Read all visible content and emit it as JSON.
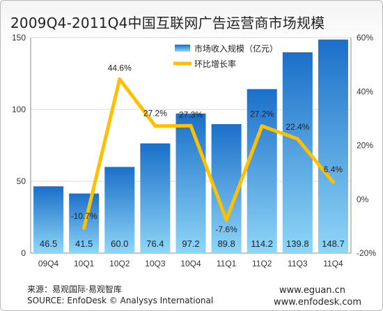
{
  "title": "2009Q4-2011Q4中国互联网广告运营商市场规模",
  "chart_data": {
    "type": "bar",
    "categories": [
      "09Q4",
      "10Q1",
      "10Q2",
      "10Q3",
      "10Q4",
      "11Q1",
      "11Q2",
      "11Q3",
      "11Q4"
    ],
    "series": [
      {
        "name": "市场收入规模（亿元）",
        "type": "bar",
        "axis": "left",
        "values": [
          46.5,
          41.5,
          60.0,
          76.4,
          97.2,
          89.8,
          114.2,
          139.8,
          148.7
        ],
        "labels": [
          "46.5",
          "41.5",
          "60.0",
          "76.4",
          "97.2",
          "89.8",
          "114.2",
          "139.8",
          "148.7"
        ]
      },
      {
        "name": "环比增长率",
        "type": "line",
        "axis": "right",
        "values": [
          null,
          -10.7,
          44.6,
          27.2,
          27.3,
          -7.6,
          27.2,
          22.4,
          6.4
        ],
        "labels": [
          "",
          "-10.7%",
          "44.6%",
          "27.2%",
          "27.3%",
          "-7.6%",
          "27.2%",
          "22.4%",
          "6.4%"
        ]
      }
    ],
    "y_left": {
      "min": 0,
      "max": 150,
      "ticks": [
        "0",
        "50",
        "100",
        "150"
      ]
    },
    "y_right": {
      "min": -20,
      "max": 60,
      "ticks": [
        "-20%",
        "0%",
        "20%",
        "40%",
        "60%"
      ]
    },
    "legend_position": "top-right",
    "colors": {
      "bar_top": "#1b6fc9",
      "bar_bottom": "#8fd6f7",
      "line": "#ffc000",
      "grid": "#d8d8d8"
    }
  },
  "footer": {
    "source_cn": "来源：易观国际·易观智库",
    "source_en": "SOURCE: EnfoDesk © Analysys International",
    "url1": "www.eguan.cn",
    "url2": "www.enfodesk.com"
  }
}
